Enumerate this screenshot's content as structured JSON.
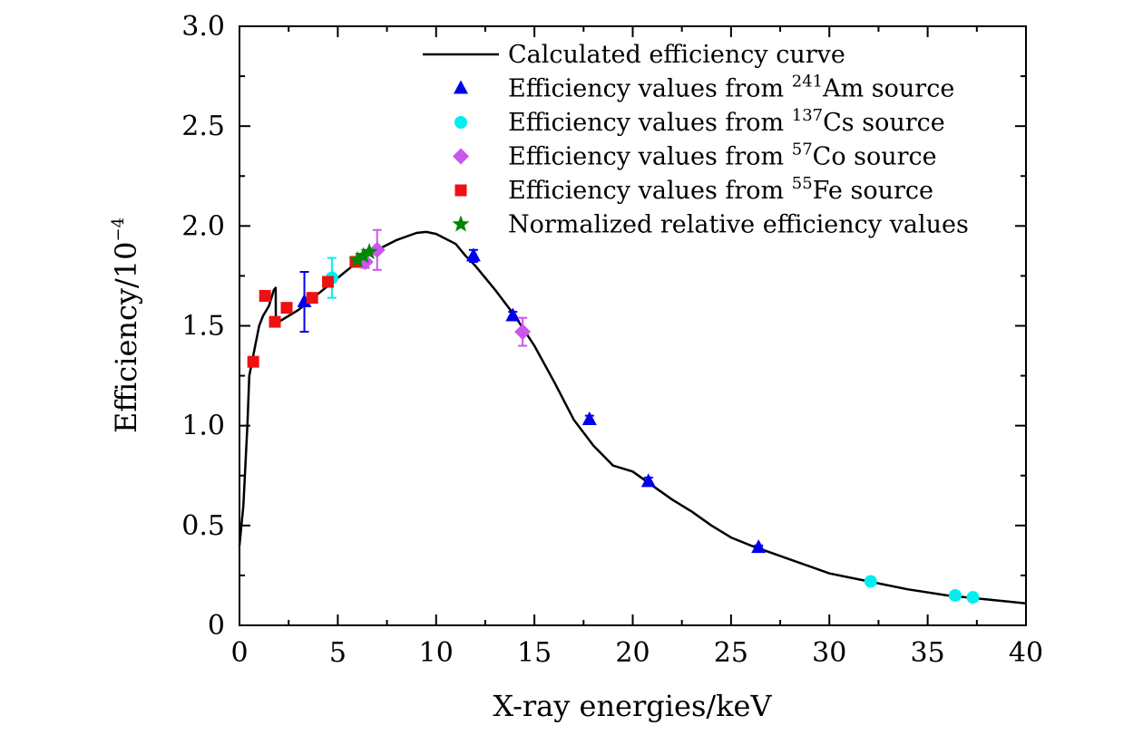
{
  "chart_data": {
    "type": "scatter",
    "xlabel": "X-ray energies/keV",
    "ylabel_base": "Efficiency/10",
    "ylabel_exp": "−4",
    "xlim": [
      0,
      40
    ],
    "ylim": [
      0,
      3.0
    ],
    "x_ticks": [
      0,
      5,
      10,
      15,
      20,
      25,
      30,
      35,
      40
    ],
    "x_tick_labels": [
      "0",
      "5",
      "10",
      "15",
      "20",
      "25",
      "30",
      "35",
      "40"
    ],
    "y_ticks": [
      0,
      0.5,
      1.0,
      1.5,
      2.0,
      2.5,
      3.0
    ],
    "y_tick_labels": [
      "0",
      "0.5",
      "1.0",
      "1.5",
      "2.0",
      "2.5",
      "3.0"
    ],
    "grid": false,
    "legend_position": "top-right",
    "legend": [
      {
        "marker": "line",
        "color": "#000000",
        "text": "Calculated efficiency curve"
      },
      {
        "marker": "triangle",
        "color": "#0000ee",
        "pre": "Efficiency values from ",
        "sup": "241",
        "post": "Am source"
      },
      {
        "marker": "circle",
        "color": "#00eeee",
        "pre": "Efficiency values from ",
        "sup": "137",
        "post": "Cs source"
      },
      {
        "marker": "diamond",
        "color": "#cc55ee",
        "pre": "Efficiency values from ",
        "sup": "57",
        "post": "Co source"
      },
      {
        "marker": "square",
        "color": "#ee1111",
        "pre": "Efficiency values from ",
        "sup": "55",
        "post": "Fe source"
      },
      {
        "marker": "star",
        "color": "#008800",
        "text": "Normalized relative efficiency values"
      }
    ],
    "curve": {
      "x": [
        0.0,
        0.2,
        0.4,
        0.5,
        0.6,
        0.8,
        1.0,
        1.2,
        1.5,
        1.75,
        1.84,
        1.85,
        2.0,
        2.5,
        3.0,
        3.5,
        4.0,
        4.5,
        5.0,
        5.5,
        6.0,
        7.0,
        8.0,
        9.0,
        9.5,
        10.0,
        11.0,
        11.5,
        12.0,
        12.5,
        13.0,
        14.0,
        15.0,
        16.0,
        17.0,
        18.0,
        19.0,
        20.0,
        21.0,
        22.0,
        23.0,
        24.0,
        25.0,
        26.0,
        28.0,
        30.0,
        32.0,
        34.0,
        36.0,
        38.0,
        40.0
      ],
      "y": [
        0.4,
        0.6,
        1.0,
        1.25,
        1.3,
        1.4,
        1.5,
        1.55,
        1.6,
        1.68,
        1.69,
        1.52,
        1.52,
        1.55,
        1.58,
        1.62,
        1.66,
        1.7,
        1.74,
        1.78,
        1.82,
        1.88,
        1.93,
        1.965,
        1.97,
        1.96,
        1.91,
        1.85,
        1.8,
        1.74,
        1.68,
        1.55,
        1.4,
        1.22,
        1.03,
        0.9,
        0.8,
        0.77,
        0.7,
        0.63,
        0.57,
        0.5,
        0.44,
        0.4,
        0.33,
        0.26,
        0.22,
        0.18,
        0.15,
        0.13,
        0.11
      ]
    },
    "series": [
      {
        "legend_index": 1,
        "marker": "triangle",
        "color": "#0000ee",
        "points": [
          {
            "x": 3.3,
            "y": 1.62,
            "err": 0.15
          },
          {
            "x": 11.9,
            "y": 1.85,
            "err": 0.03
          },
          {
            "x": 13.9,
            "y": 1.55,
            "err": 0.02
          },
          {
            "x": 17.8,
            "y": 1.03,
            "err": 0.02
          },
          {
            "x": 20.8,
            "y": 0.72,
            "err": 0.02
          },
          {
            "x": 26.4,
            "y": 0.39,
            "err": 0.01
          }
        ]
      },
      {
        "legend_index": 2,
        "marker": "circle",
        "color": "#00eeee",
        "points": [
          {
            "x": 4.7,
            "y": 1.74,
            "err": 0.1
          },
          {
            "x": 32.1,
            "y": 0.22,
            "err": 0.01
          },
          {
            "x": 36.4,
            "y": 0.15,
            "err": 0.01
          },
          {
            "x": 37.3,
            "y": 0.14,
            "err": 0.01
          }
        ]
      },
      {
        "legend_index": 3,
        "marker": "diamond",
        "color": "#cc55ee",
        "points": [
          {
            "x": 6.4,
            "y": 1.82,
            "err": 0.03
          },
          {
            "x": 7.0,
            "y": 1.88,
            "err": 0.1
          },
          {
            "x": 14.4,
            "y": 1.47,
            "err": 0.07
          }
        ]
      },
      {
        "legend_index": 4,
        "marker": "square",
        "color": "#ee1111",
        "points": [
          {
            "x": 0.7,
            "y": 1.32,
            "err": 0.0
          },
          {
            "x": 1.3,
            "y": 1.65,
            "err": 0.0
          },
          {
            "x": 1.8,
            "y": 1.52,
            "err": 0.0
          },
          {
            "x": 2.4,
            "y": 1.59,
            "err": 0.0
          },
          {
            "x": 3.7,
            "y": 1.64,
            "err": 0.0
          },
          {
            "x": 4.5,
            "y": 1.72,
            "err": 0.0
          },
          {
            "x": 5.9,
            "y": 1.82,
            "err": 0.0
          }
        ]
      },
      {
        "legend_index": 5,
        "marker": "star",
        "color": "#008800",
        "points": [
          {
            "x": 6.0,
            "y": 1.83,
            "err": 0.0
          },
          {
            "x": 6.3,
            "y": 1.85,
            "err": 0.0
          },
          {
            "x": 6.6,
            "y": 1.87,
            "err": 0.0
          }
        ]
      }
    ]
  }
}
